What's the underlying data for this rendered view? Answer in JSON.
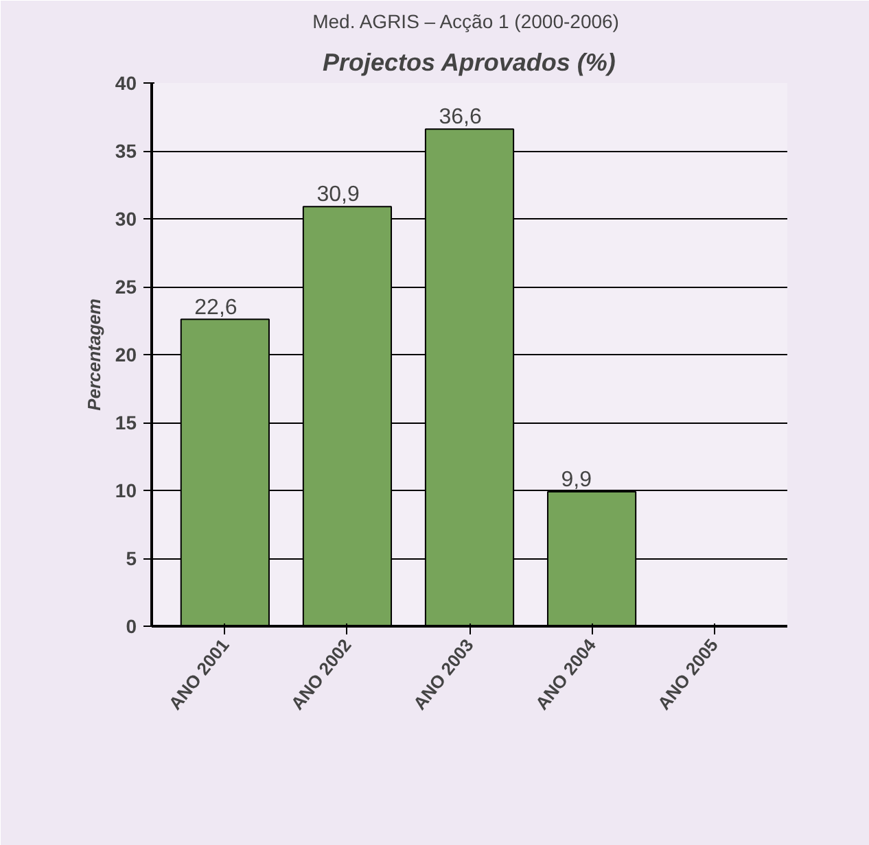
{
  "chart_data": {
    "type": "bar",
    "title": "Projectos Aprovados (%)",
    "subtitle": "Med.  AGRIS – Acção 1 (2000-2006)",
    "ylabel": "Percentagem",
    "categories": [
      "ANO 2001",
      "ANO 2002",
      "ANO 2003",
      "ANO 2004",
      "ANO 2005"
    ],
    "values": [
      22.6,
      30.9,
      36.6,
      9.9,
      null
    ],
    "color": "#77a45a",
    "value_labels": [
      "22,6",
      "30,9",
      "36,6",
      "9,9",
      null
    ],
    "ylim": [
      0,
      40
    ],
    "yticks": [
      0,
      5,
      10,
      15,
      20,
      25,
      30,
      35,
      40
    ],
    "grid": "y"
  }
}
